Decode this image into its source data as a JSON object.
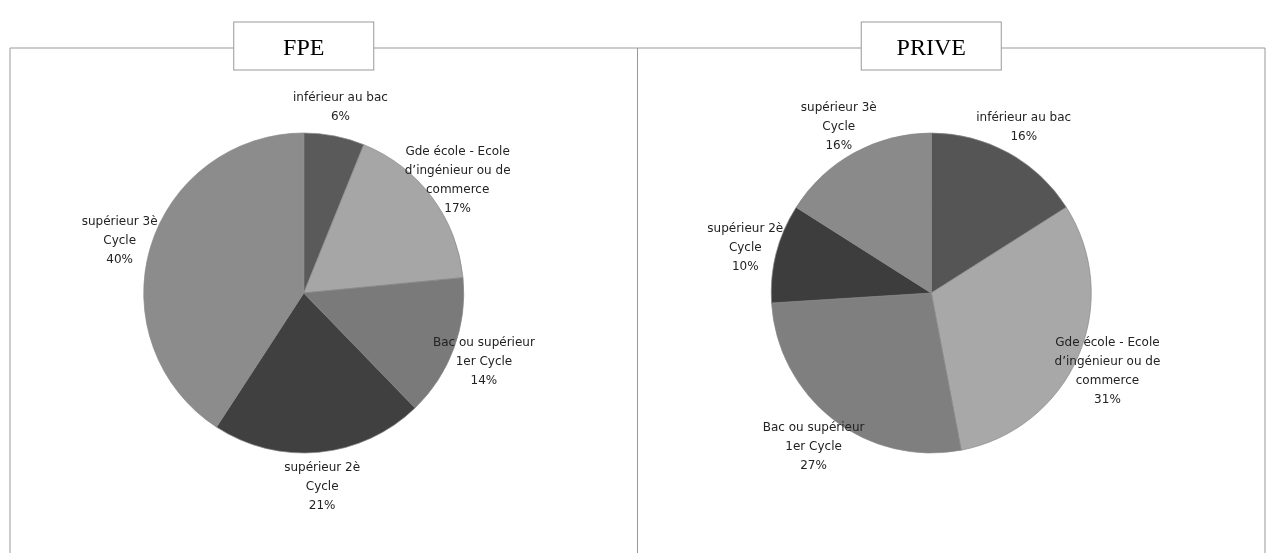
{
  "chart_data": [
    {
      "type": "pie",
      "title": "FPE",
      "categories": [
        "inférieur au bac",
        "Gde école - Ecole d’ingénieur ou de commerce",
        "Bac ou supérieur 1er Cycle",
        "supérieur 2è Cycle",
        "supérieur 3è Cycle"
      ],
      "values": [
        6,
        17,
        14,
        21,
        40
      ],
      "value_labels": [
        "6%",
        "17%",
        "14%",
        "21%",
        "40%"
      ],
      "colors": [
        "#5a5a5a",
        "#a6a6a6",
        "#7a7a7a",
        "#404040",
        "#8c8c8c"
      ]
    },
    {
      "type": "pie",
      "title": "PRIVE",
      "categories": [
        "inférieur au bac",
        "Gde école - Ecole d’ingénieur ou de commerce",
        "Bac ou supérieur 1er Cycle",
        "supérieur 2è Cycle",
        "supérieur 3è Cycle"
      ],
      "values": [
        16,
        31,
        27,
        10,
        16
      ],
      "value_labels": [
        "16%",
        "31%",
        "27%",
        "10%",
        "16%"
      ],
      "colors": [
        "#555555",
        "#a8a8a8",
        "#7f7f7f",
        "#3d3d3d",
        "#8a8a8a"
      ]
    }
  ]
}
